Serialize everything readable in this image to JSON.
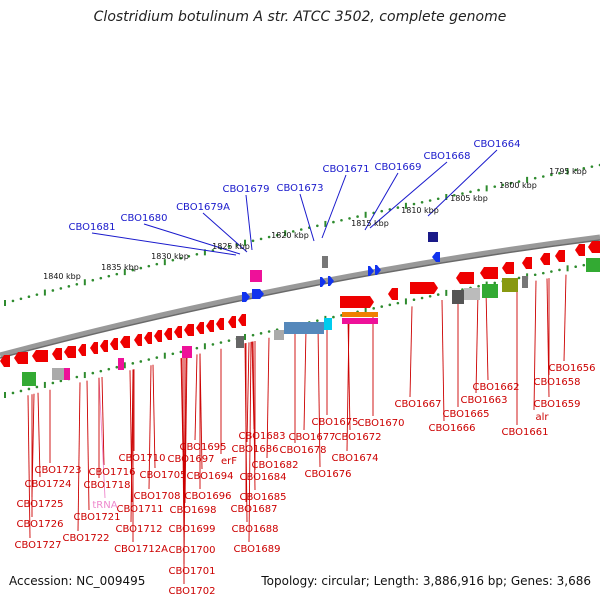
{
  "title": "Clostridium botulinum A str. ATCC 3502, complete genome",
  "footer": {
    "accession": "Accession: NC_009495",
    "summary": "Topology: circular; Length: 3,886,916 bp; Genes: 3,686"
  },
  "scale_labels": [
    "1795 kbp",
    "1800 kbp",
    "1805 kbp",
    "1810 kbp",
    "1815 kbp",
    "1820 kbp",
    "1825 kbp",
    "1830 kbp",
    "1835 kbp",
    "1840 kbp"
  ],
  "upper_gene_labels": [
    "CBO1664",
    "CBO1668",
    "CBO1669",
    "CBO1671",
    "CBO1673",
    "CBO1679",
    "CBO1679A",
    "CBO1680",
    "CBO1681"
  ],
  "lower_gene_labels": [
    "CBO1656",
    "CBO1658",
    "CBO1659",
    "alr",
    "CBO1661",
    "CBO1662",
    "CBO1663",
    "CBO1665",
    "CBO1666",
    "CBO1667",
    "CBO1670",
    "CBO1672",
    "CBO1674",
    "CBO1675",
    "CBO1676",
    "CBO1677",
    "CBO1678",
    "CBO1683",
    "CBO1682",
    "CBO1684",
    "CBO1685",
    "CBO1686",
    "CBO1687",
    "CBO1688",
    "CBO1689",
    "erF",
    "CBO1694",
    "CBO1695",
    "CBO1696",
    "CBO1697",
    "CBO1698",
    "CBO1699",
    "CBO1700",
    "CBO1701",
    "CBO1702",
    "CBO1705",
    "CBO1708",
    "CBO1710",
    "CBO1711",
    "CBO1712",
    "CBO1712A",
    "CBO1716",
    "tRNA",
    "CBO1718",
    "CBO1721",
    "CBO1722",
    "CBO1723",
    "CBO1724",
    "CBO1725",
    "CBO1726",
    "CBO1727"
  ],
  "colors": {
    "upper_label": "#1a1acc",
    "lower_label": "#cc0000",
    "trna_label": "#ee88cc",
    "backbone": "#888888",
    "tick": "#2e8b2e",
    "gene_red": "#ee0000",
    "gene_blue": "#1133ee",
    "gene_magenta": "#ee1199"
  }
}
